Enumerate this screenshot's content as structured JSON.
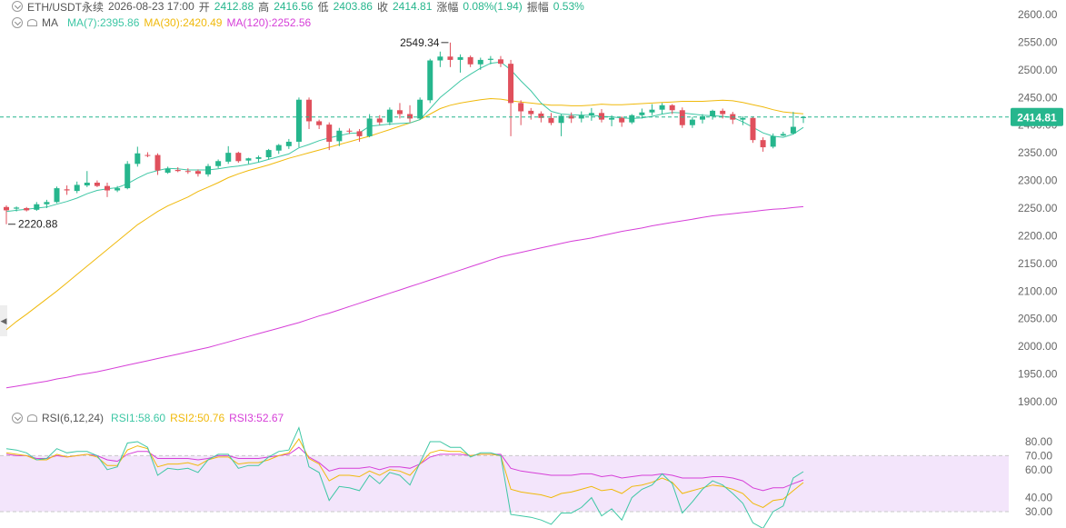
{
  "header": {
    "symbol": "ETH/USDT永续",
    "datetime": "2026-08-23 17:00",
    "open_label": "开",
    "open_value": "2412.88",
    "high_label": "高",
    "high_value": "2416.56",
    "low_label": "低",
    "low_value": "2403.86",
    "close_label": "收",
    "close_value": "2414.81",
    "change_label": "涨幅",
    "change_value": "0.08%(1.94)",
    "amp_label": "振幅",
    "amp_value": "0.53%",
    "up_color": "#26b68d"
  },
  "ma": {
    "label": "MA",
    "ma7": "MA(7):2395.86",
    "ma7_color": "#3ec7a5",
    "ma30": "MA(30):2420.49",
    "ma30_color": "#f0b90b",
    "ma120": "MA(120):2252.56",
    "ma120_color": "#d63fd8"
  },
  "rsi": {
    "label": "RSI(6,12,24)",
    "rsi1": "RSI1:58.60",
    "rsi1_color": "#3ec7a5",
    "rsi2": "RSI2:50.76",
    "rsi2_color": "#f0b90b",
    "rsi3": "RSI3:52.67",
    "rsi3_color": "#d63fd8"
  },
  "chart_data": {
    "type": "candlestick",
    "price_ticks": [
      "2600.00",
      "2550.00",
      "2500.00",
      "2450.00",
      "2400.00",
      "2350.00",
      "2300.00",
      "2250.00",
      "2200.00",
      "2150.00",
      "2100.00",
      "2050.00",
      "2000.00",
      "1950.00",
      "1900.00"
    ],
    "price_range": [
      1885,
      2610
    ],
    "rsi_ticks": [
      "80.00",
      "70.00",
      "60.00",
      "40.00",
      "30.00"
    ],
    "rsi_range": [
      23,
      97
    ],
    "rsi_band": [
      30,
      70
    ],
    "current_price": 2414.81,
    "current_price_label": "2414.81",
    "max_label": "2549.34",
    "min_label": "2220.88",
    "up_color": "#26b68d",
    "down_color": "#e0505c",
    "candles": [
      [
        2252,
        2255,
        2220.88,
        2246
      ],
      [
        2249,
        2253,
        2244,
        2251
      ],
      [
        2250,
        2252,
        2244,
        2246
      ],
      [
        2247,
        2261,
        2245,
        2257
      ],
      [
        2257,
        2265,
        2250,
        2261
      ],
      [
        2261,
        2289,
        2259,
        2286
      ],
      [
        2284,
        2291,
        2274,
        2282
      ],
      [
        2281,
        2298,
        2277,
        2292
      ],
      [
        2291,
        2317,
        2288,
        2296
      ],
      [
        2296,
        2300,
        2288,
        2290
      ],
      [
        2290,
        2296,
        2270,
        2282
      ],
      [
        2282,
        2290,
        2279,
        2286
      ],
      [
        2286,
        2335,
        2284,
        2330
      ],
      [
        2330,
        2361,
        2325,
        2349
      ],
      [
        2346,
        2351,
        2342,
        2345
      ],
      [
        2346,
        2349,
        2310,
        2318
      ],
      [
        2314,
        2325,
        2312,
        2321
      ],
      [
        2319,
        2324,
        2315,
        2317
      ],
      [
        2317,
        2322,
        2312,
        2316
      ],
      [
        2317,
        2320,
        2307,
        2312
      ],
      [
        2311,
        2330,
        2307,
        2326
      ],
      [
        2326,
        2338,
        2322,
        2335
      ],
      [
        2334,
        2362,
        2330,
        2350
      ],
      [
        2350,
        2352,
        2332,
        2335
      ],
      [
        2336,
        2341,
        2330,
        2340
      ],
      [
        2339,
        2345,
        2333,
        2342
      ],
      [
        2342,
        2357,
        2338,
        2355
      ],
      [
        2354,
        2366,
        2348,
        2364
      ],
      [
        2362,
        2375,
        2357,
        2370
      ],
      [
        2370,
        2450,
        2360,
        2446
      ],
      [
        2446,
        2450,
        2393,
        2407
      ],
      [
        2407,
        2410,
        2393,
        2400
      ],
      [
        2401,
        2405,
        2355,
        2370
      ],
      [
        2371,
        2395,
        2362,
        2390
      ],
      [
        2390,
        2394,
        2384,
        2389
      ],
      [
        2389,
        2393,
        2370,
        2380
      ],
      [
        2380,
        2420,
        2378,
        2412
      ],
      [
        2412,
        2418,
        2400,
        2405
      ],
      [
        2405,
        2432,
        2400,
        2428
      ],
      [
        2427,
        2440,
        2412,
        2420
      ],
      [
        2420,
        2436,
        2405,
        2412
      ],
      [
        2412,
        2450,
        2410,
        2446
      ],
      [
        2445,
        2520,
        2440,
        2517
      ],
      [
        2517,
        2533,
        2505,
        2524
      ],
      [
        2524,
        2549.34,
        2505,
        2518
      ],
      [
        2518,
        2528,
        2495,
        2523
      ],
      [
        2523,
        2526,
        2505,
        2510
      ],
      [
        2510,
        2522,
        2500,
        2518
      ],
      [
        2518,
        2525,
        2510,
        2520
      ],
      [
        2519,
        2525,
        2505,
        2511
      ],
      [
        2511,
        2518,
        2380,
        2440
      ],
      [
        2440,
        2445,
        2400,
        2425
      ],
      [
        2426,
        2431,
        2410,
        2420
      ],
      [
        2421,
        2425,
        2405,
        2413
      ],
      [
        2413,
        2422,
        2400,
        2404
      ],
      [
        2404,
        2420,
        2380,
        2417
      ],
      [
        2417,
        2423,
        2404,
        2412
      ],
      [
        2412,
        2425,
        2405,
        2418
      ],
      [
        2418,
        2431,
        2408,
        2422
      ],
      [
        2422,
        2429,
        2405,
        2410
      ],
      [
        2410,
        2418,
        2398,
        2413
      ],
      [
        2413,
        2416,
        2397,
        2405
      ],
      [
        2405,
        2420,
        2402,
        2418
      ],
      [
        2418,
        2430,
        2412,
        2423
      ],
      [
        2423,
        2438,
        2418,
        2428
      ],
      [
        2428,
        2440,
        2420,
        2436
      ],
      [
        2436,
        2438,
        2420,
        2427
      ],
      [
        2427,
        2432,
        2395,
        2400
      ],
      [
        2400,
        2415,
        2395,
        2410
      ],
      [
        2410,
        2420,
        2403,
        2416
      ],
      [
        2416,
        2428,
        2410,
        2426
      ],
      [
        2426,
        2430,
        2412,
        2420
      ],
      [
        2420,
        2424,
        2402,
        2410
      ],
      [
        2410,
        2416,
        2400,
        2413
      ],
      [
        2413,
        2416,
        2368,
        2373
      ],
      [
        2373,
        2378,
        2352,
        2360
      ],
      [
        2361,
        2385,
        2358,
        2380
      ],
      [
        2381,
        2388,
        2380,
        2384
      ],
      [
        2385,
        2424,
        2383,
        2397
      ],
      [
        2412.88,
        2416.56,
        2403.86,
        2414.81
      ]
    ],
    "ma7": [
      2244,
      2246,
      2248,
      2250,
      2252,
      2257,
      2262,
      2268,
      2276,
      2282,
      2285,
      2287,
      2294,
      2304,
      2313,
      2318,
      2322,
      2321,
      2319,
      2319,
      2319,
      2321,
      2324,
      2326,
      2329,
      2333,
      2338,
      2343,
      2348,
      2359,
      2365,
      2372,
      2377,
      2381,
      2385,
      2386,
      2398,
      2400,
      2402,
      2403,
      2404,
      2410,
      2430,
      2450,
      2465,
      2480,
      2492,
      2503,
      2512,
      2514,
      2500,
      2480,
      2462,
      2440,
      2425,
      2420,
      2419,
      2418,
      2418,
      2416,
      2415,
      2413,
      2412,
      2413,
      2416,
      2420,
      2423,
      2422,
      2420,
      2418,
      2417,
      2416,
      2414,
      2406,
      2396,
      2386,
      2380,
      2378,
      2384,
      2395.86
    ],
    "ma30": [
      2030,
      2045,
      2058,
      2072,
      2086,
      2100,
      2115,
      2130,
      2145,
      2160,
      2175,
      2190,
      2205,
      2220,
      2232,
      2244,
      2254,
      2262,
      2270,
      2280,
      2288,
      2296,
      2305,
      2312,
      2318,
      2323,
      2328,
      2334,
      2340,
      2345,
      2350,
      2355,
      2360,
      2365,
      2370,
      2375,
      2380,
      2386,
      2392,
      2398,
      2404,
      2410,
      2420,
      2430,
      2436,
      2440,
      2443,
      2446,
      2448,
      2447,
      2444,
      2442,
      2440,
      2438,
      2436,
      2436,
      2435,
      2435,
      2436,
      2438,
      2437,
      2437,
      2438,
      2439,
      2440,
      2441,
      2442,
      2443,
      2443,
      2443,
      2444,
      2445,
      2444,
      2441,
      2437,
      2433,
      2428,
      2424,
      2422,
      2420.49
    ],
    "ma120": [
      1925,
      1928,
      1931,
      1934,
      1937,
      1941,
      1944,
      1948,
      1951,
      1954,
      1958,
      1962,
      1966,
      1970,
      1974,
      1978,
      1982,
      1986,
      1990,
      1994,
      1998,
      2003,
      2008,
      2013,
      2018,
      2023,
      2028,
      2033,
      2038,
      2043,
      2049,
      2055,
      2060,
      2066,
      2072,
      2078,
      2084,
      2090,
      2096,
      2102,
      2108,
      2114,
      2120,
      2126,
      2132,
      2138,
      2144,
      2150,
      2156,
      2162,
      2166,
      2170,
      2174,
      2178,
      2182,
      2186,
      2190,
      2193,
      2196,
      2200,
      2204,
      2208,
      2211,
      2214,
      2218,
      2221,
      2224,
      2227,
      2230,
      2233,
      2236,
      2238,
      2240,
      2242,
      2244,
      2246,
      2248,
      2249,
      2251,
      2252.56
    ],
    "rsi1": [
      75,
      74,
      72,
      67,
      68,
      75,
      72,
      73,
      73,
      70,
      60,
      62,
      79,
      80,
      76,
      56,
      61,
      60,
      61,
      58,
      67,
      71,
      71,
      61,
      63,
      63,
      69,
      73,
      74,
      90,
      62,
      58,
      38,
      48,
      47,
      45,
      56,
      50,
      58,
      56,
      49,
      65,
      80,
      80,
      76,
      76,
      69,
      72,
      72,
      70,
      28,
      27,
      26,
      24,
      21,
      29,
      29,
      33,
      40,
      27,
      32,
      24,
      40,
      46,
      49,
      57,
      50,
      29,
      37,
      46,
      52,
      49,
      43,
      36,
      22,
      18,
      30,
      34,
      54,
      58.6
    ],
    "rsi2": [
      72,
      71,
      70,
      67,
      67,
      71,
      69,
      70,
      71,
      69,
      63,
      63,
      74,
      77,
      75,
      62,
      64,
      64,
      65,
      63,
      67,
      69,
      69,
      64,
      65,
      65,
      67,
      70,
      72,
      82,
      68,
      64,
      52,
      56,
      56,
      55,
      59,
      56,
      60,
      59,
      56,
      64,
      72,
      74,
      73,
      73,
      70,
      71,
      71,
      70,
      46,
      44,
      43,
      42,
      40,
      43,
      44,
      46,
      48,
      45,
      46,
      43,
      48,
      49,
      51,
      54,
      51,
      43,
      45,
      47,
      49,
      48,
      46,
      43,
      36,
      33,
      38,
      39,
      45,
      50.76
    ],
    "rsi3": [
      71,
      70,
      70,
      68,
      68,
      70,
      69,
      70,
      71,
      70,
      67,
      66,
      71,
      73,
      73,
      68,
      68,
      68,
      68,
      67,
      68,
      70,
      70,
      68,
      68,
      68,
      69,
      70,
      71,
      76,
      69,
      65,
      59,
      61,
      61,
      61,
      62,
      60,
      62,
      62,
      61,
      64,
      69,
      71,
      71,
      71,
      70,
      71,
      71,
      71,
      61,
      59,
      58,
      57,
      56,
      56,
      56,
      57,
      57,
      55,
      56,
      54,
      55,
      56,
      56,
      57,
      56,
      54,
      54,
      54,
      55,
      55,
      54,
      52,
      47,
      45,
      47,
      47,
      50,
      52.67
    ]
  }
}
